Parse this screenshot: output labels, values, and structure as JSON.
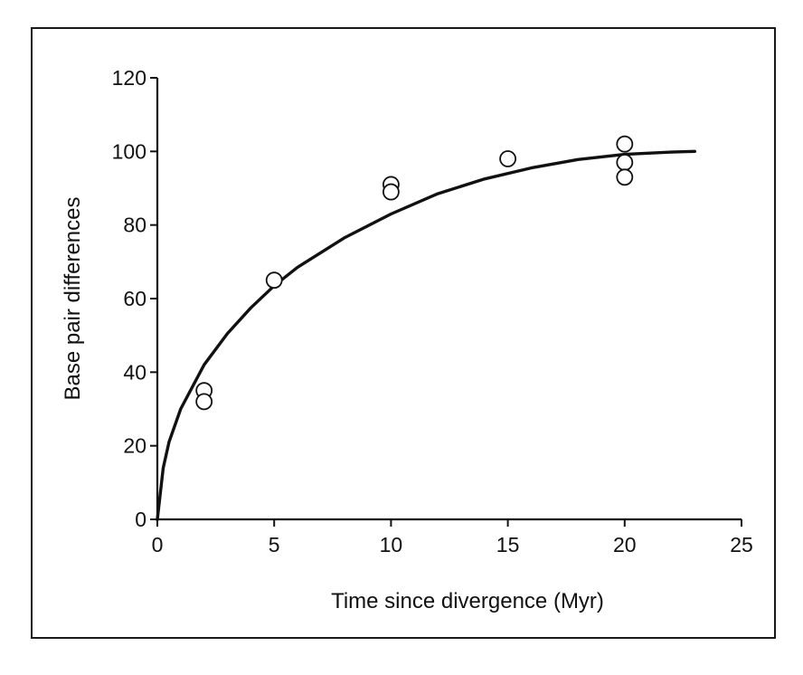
{
  "chart_data": {
    "type": "scatter",
    "title": "",
    "xlabel": "Time since divergence (Myr)",
    "ylabel": "Base pair differences",
    "xlim": [
      0,
      25
    ],
    "ylim": [
      0,
      120
    ],
    "x_ticks": [
      0,
      5,
      10,
      15,
      20,
      25
    ],
    "y_ticks": [
      0,
      20,
      40,
      60,
      80,
      100,
      120
    ],
    "x_tick_labels": [
      "0",
      "5",
      "10",
      "15",
      "20",
      "25"
    ],
    "y_tick_labels": [
      "0",
      "20",
      "40",
      "60",
      "80",
      "100",
      "120"
    ],
    "grid": false,
    "legend": "none",
    "series": [
      {
        "type": "scatter",
        "marker": "open-circle",
        "points": [
          {
            "x": 2,
            "y": 35
          },
          {
            "x": 2,
            "y": 32
          },
          {
            "x": 5,
            "y": 65
          },
          {
            "x": 10,
            "y": 91
          },
          {
            "x": 10,
            "y": 89
          },
          {
            "x": 15,
            "y": 98
          },
          {
            "x": 20,
            "y": 102
          },
          {
            "x": 20,
            "y": 97
          },
          {
            "x": 20,
            "y": 93
          }
        ]
      },
      {
        "type": "line",
        "style": "fitted-curve",
        "points": [
          {
            "x": 0,
            "y": 0
          },
          {
            "x": 0.25,
            "y": 14
          },
          {
            "x": 0.5,
            "y": 21
          },
          {
            "x": 1,
            "y": 30
          },
          {
            "x": 2,
            "y": 42
          },
          {
            "x": 3,
            "y": 50.5
          },
          {
            "x": 4,
            "y": 57.5
          },
          {
            "x": 5,
            "y": 63.5
          },
          {
            "x": 6,
            "y": 68.5
          },
          {
            "x": 8,
            "y": 76.5
          },
          {
            "x": 10,
            "y": 83
          },
          {
            "x": 12,
            "y": 88.5
          },
          {
            "x": 14,
            "y": 92.5
          },
          {
            "x": 16,
            "y": 95.5
          },
          {
            "x": 18,
            "y": 97.8
          },
          {
            "x": 20,
            "y": 99.2
          },
          {
            "x": 22,
            "y": 99.8
          },
          {
            "x": 23,
            "y": 100
          }
        ]
      }
    ]
  }
}
